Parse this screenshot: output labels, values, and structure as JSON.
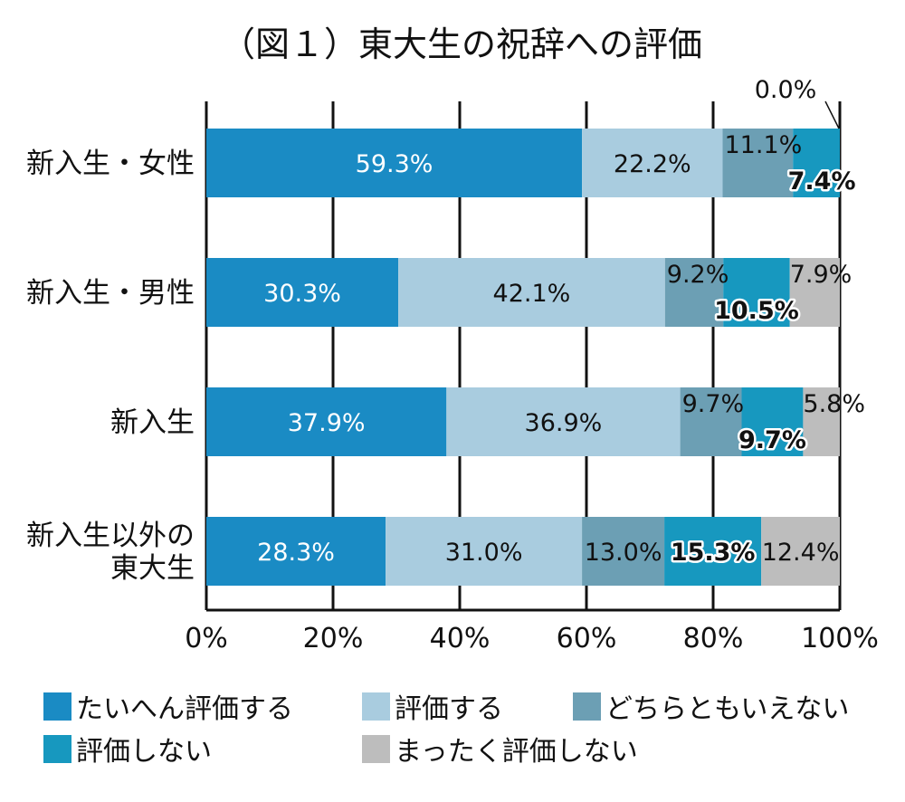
{
  "chart_data": {
    "type": "bar",
    "orientation": "horizontal",
    "stacked": true,
    "title": "（図１）東大生の祝辞への評価",
    "xlim": [
      0,
      100
    ],
    "x_ticks": [
      "0%",
      "20%",
      "40%",
      "60%",
      "80%",
      "100%"
    ],
    "grid": true,
    "legend_position": "bottom",
    "categories": [
      "新入生・女性",
      "新入生・男性",
      "新入生",
      "新入生以外の\n東大生"
    ],
    "series": [
      {
        "name": "たいへん評価する",
        "color": "#1a8bc4",
        "values": [
          59.3,
          30.3,
          37.9,
          28.3
        ],
        "labels": [
          "59.3%",
          "30.3%",
          "37.9%",
          "28.3%"
        ]
      },
      {
        "name": "評価する",
        "color": "#a9ccdf",
        "values": [
          22.2,
          42.1,
          36.9,
          31.0
        ],
        "labels": [
          "22.2%",
          "42.1%",
          "36.9%",
          "31.0%"
        ]
      },
      {
        "name": "どちらともいえない",
        "color": "#6c9fb4",
        "values": [
          11.1,
          9.2,
          9.7,
          13.0
        ],
        "labels": [
          "11.1%",
          "9.2%",
          "9.7%",
          "13.0%"
        ]
      },
      {
        "name": "評価しない",
        "color": "#1798bf",
        "values": [
          7.4,
          10.5,
          9.7,
          15.3
        ],
        "labels": [
          "7.4%",
          "10.5%",
          "9.7%",
          "15.3%"
        ]
      },
      {
        "name": "まったく評価しない",
        "color": "#bdbdbd",
        "values": [
          0.0,
          7.9,
          5.8,
          12.4
        ],
        "labels": [
          "0.0%",
          "7.9%",
          "5.8%",
          "12.4%"
        ]
      }
    ]
  }
}
